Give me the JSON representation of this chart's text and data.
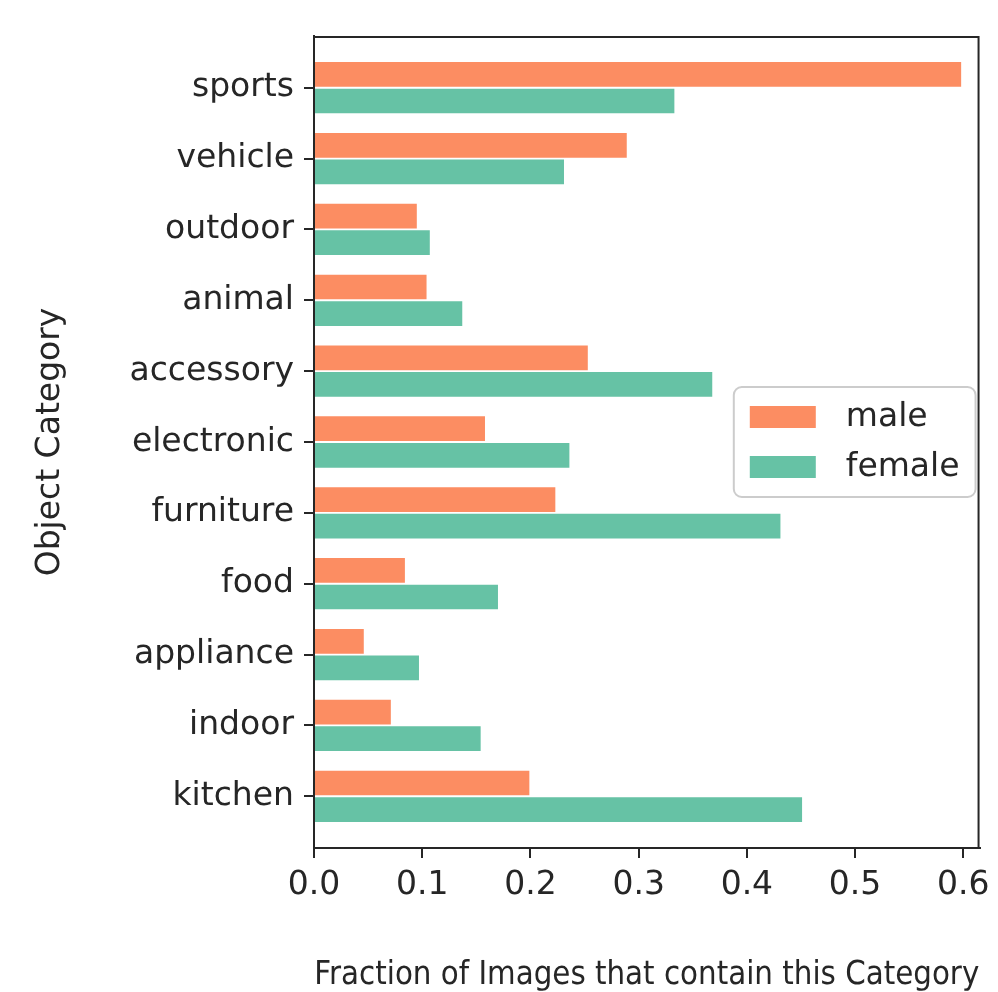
{
  "chart_data": {
    "type": "bar",
    "orientation": "horizontal",
    "xlabel": "Fraction of Images that contain this Category",
    "ylabel": "Object Category",
    "categories": [
      "sports",
      "vehicle",
      "outdoor",
      "animal",
      "accessory",
      "electronic",
      "furniture",
      "food",
      "appliance",
      "indoor",
      "kitchen"
    ],
    "series": [
      {
        "name": "male",
        "color": "#fc8d62",
        "values": [
          0.598,
          0.289,
          0.095,
          0.104,
          0.253,
          0.158,
          0.223,
          0.084,
          0.046,
          0.071,
          0.199
        ]
      },
      {
        "name": "female",
        "color": "#66c2a5",
        "values": [
          0.333,
          0.231,
          0.107,
          0.137,
          0.368,
          0.236,
          0.431,
          0.17,
          0.097,
          0.154,
          0.451
        ]
      }
    ],
    "xlim": [
      0,
      0.615
    ],
    "xticks": [
      {
        "value": 0,
        "label": "0.0"
      },
      0.1,
      0.2,
      0.3,
      0.4,
      0.5,
      0.6
    ],
    "legend": "right"
  }
}
